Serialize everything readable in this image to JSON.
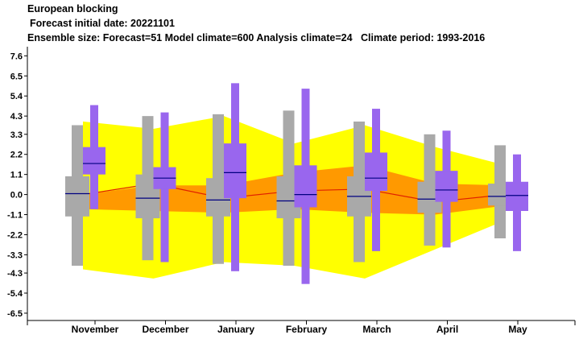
{
  "header": {
    "title": "European blocking",
    "subtitle": "Forecast initial date: 20221101",
    "ensemble_line": "Ensemble size: Forecast=51 Model climate=600 Analysis climate=24   Climate period: 1993-2016"
  },
  "colors": {
    "outer_band": "#ffff00",
    "inner_band": "#ff9900",
    "climate_box": "#a9a9a9",
    "forecast_box": "#9966ee",
    "median_line": "#000080",
    "analysis_line": "#e02000",
    "axis": "#000000"
  },
  "chart_data": {
    "type": "box",
    "categories": [
      "November",
      "December",
      "January",
      "February",
      "March",
      "April",
      "May"
    ],
    "y_ticks": [
      "7.6",
      "6.5",
      "5.4",
      "4.3",
      "3.3",
      "2.2",
      "1.1",
      "0.0",
      "-1.1",
      "-2.2",
      "-3.3",
      "-4.3",
      "-5.4",
      "-6.5"
    ],
    "ylim": [
      -6.9,
      8.1
    ],
    "outer_band": {
      "upper": [
        4.0,
        3.6,
        4.3,
        2.8,
        3.8,
        2.6,
        1.6
      ],
      "lower": [
        -4.1,
        -4.6,
        -3.7,
        -3.9,
        -4.6,
        -3.0,
        -1.4
      ]
    },
    "inner_band": {
      "upper": [
        0.0,
        0.5,
        0.5,
        1.2,
        1.6,
        0.6,
        0.5
      ],
      "lower": [
        -0.8,
        -0.9,
        -1.0,
        -0.8,
        -1.0,
        -1.1,
        -0.6
      ]
    },
    "analysis_line": [
      0.0,
      0.6,
      -0.2,
      0.2,
      0.3,
      -0.4,
      0.0
    ],
    "climate_boxes": [
      {
        "min": -3.9,
        "q1": -1.2,
        "median": 0.05,
        "q3": 1.0,
        "max": 3.8
      },
      {
        "min": -3.6,
        "q1": -1.3,
        "median": -0.2,
        "q3": 1.1,
        "max": 4.3
      },
      {
        "min": -3.8,
        "q1": -1.2,
        "median": -0.3,
        "q3": 0.9,
        "max": 4.4
      },
      {
        "min": -3.9,
        "q1": -1.3,
        "median": -0.35,
        "q3": 1.0,
        "max": 4.6
      },
      {
        "min": -3.7,
        "q1": -1.2,
        "median": -0.1,
        "q3": 1.0,
        "max": 4.0
      },
      {
        "min": -2.8,
        "q1": -1.0,
        "median": -0.25,
        "q3": 0.7,
        "max": 3.3
      },
      {
        "min": -2.4,
        "q1": -0.6,
        "median": -0.1,
        "q3": 0.6,
        "max": 2.7
      }
    ],
    "forecast_boxes": [
      {
        "min": -0.8,
        "q1": 1.1,
        "median": 1.7,
        "q3": 2.6,
        "max": 4.9
      },
      {
        "min": -3.7,
        "q1": 0.3,
        "median": 0.9,
        "q3": 1.5,
        "max": 4.5
      },
      {
        "min": -4.2,
        "q1": -0.2,
        "median": 1.2,
        "q3": 2.8,
        "max": 6.1
      },
      {
        "min": -4.9,
        "q1": -0.7,
        "median": 0.0,
        "q3": 1.6,
        "max": 5.8
      },
      {
        "min": -3.1,
        "q1": 0.2,
        "median": 0.9,
        "q3": 2.3,
        "max": 4.7
      },
      {
        "min": -2.9,
        "q1": -0.4,
        "median": 0.25,
        "q3": 1.3,
        "max": 3.5
      },
      {
        "min": -3.1,
        "q1": -0.9,
        "median": -0.05,
        "q3": 0.7,
        "max": 2.2
      }
    ],
    "grid": false,
    "legend": "none"
  }
}
